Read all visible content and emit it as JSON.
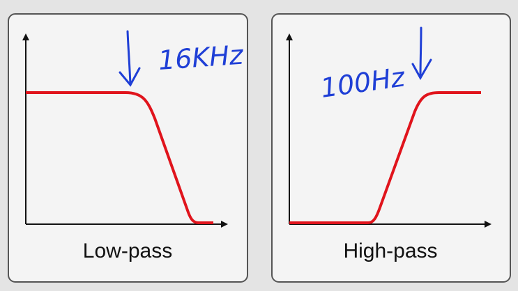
{
  "panels": [
    {
      "label": "Low-pass",
      "annotation": "16KHz"
    },
    {
      "label": "High-pass",
      "annotation": "100Hz"
    }
  ]
}
